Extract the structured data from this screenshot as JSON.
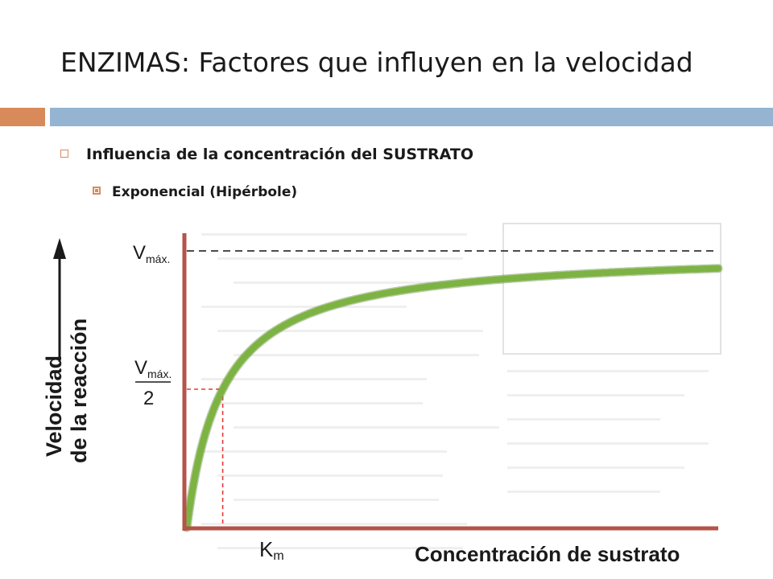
{
  "slide": {
    "title": "ENZIMAS: Factores que influyen en la velocidad",
    "bullet_1": "Influencia de la concentración del SUSTRATO",
    "bullet_2": "Exponencial (Hipérbole)"
  },
  "chart_data": {
    "type": "line",
    "ylabel_line1": "Velocidad",
    "ylabel_line2": "de la reacción",
    "xlabel": "Concentración de sustrato",
    "vmax_label_main": "V",
    "vmax_label_sub": "máx.",
    "half_vmax_label_main": "V",
    "half_vmax_label_sub": "máx.",
    "half_vmax_label_den": "2",
    "km_label_main": "K",
    "km_label_sub": "m",
    "vmax": 1.0,
    "km": 1.0,
    "xlim": [
      0,
      14.8
    ],
    "ylim": [
      0,
      1.1
    ],
    "series": [
      {
        "values_function": "michaelis-menten",
        "color": "#7db342"
      }
    ],
    "vmax_line_color": "#333333",
    "half_line_color": "#e53935",
    "axis_color": "#b5544a"
  },
  "colors": {
    "accent_orange": "#d98a5a",
    "accent_blue": "#94b4d2"
  }
}
